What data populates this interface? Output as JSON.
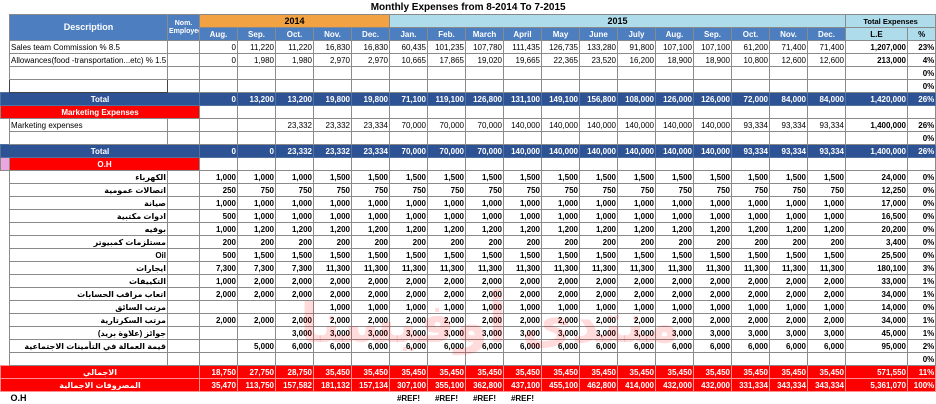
{
  "title": "Monthly Expenses from 8-2014 To 7-2015",
  "watermark": "منتدى أوفيسنا",
  "colors": {
    "year2014_band": "#F2A242",
    "year2015_band": "#AEDCEB",
    "header_blue": "#4D7EBF",
    "total_row_blue": "#2E5395",
    "section_red": "#FE0000",
    "oh_pink": "#EAA6DE"
  },
  "header": {
    "description": "Description",
    "employees": "Nom. Employees",
    "year_2014": "2014",
    "year_2015": "2015",
    "total_expenses": "Total Expenses",
    "months": [
      "Aug.",
      "Sep.",
      "Oct.",
      "Nov.",
      "Dec.",
      "Jan.",
      "Feb.",
      "March",
      "April",
      "May",
      "June",
      "July",
      "Aug.",
      "Sep.",
      "Oct.",
      "Nov.",
      "Dec."
    ],
    "le": "L.E",
    "pct": "%"
  },
  "rows": [
    {
      "type": "data",
      "name": "sales-commission",
      "label": "Sales team Commission % 8.5",
      "values": [
        "0",
        "11,220",
        "11,220",
        "16,830",
        "16,830",
        "60,435",
        "101,235",
        "107,780",
        "111,435",
        "126,735",
        "133,280",
        "91,800",
        "107,100",
        "107,100",
        "61,200",
        "71,400",
        "71,400"
      ],
      "le": "1,207,000",
      "pct": "23%"
    },
    {
      "type": "data",
      "name": "allowances",
      "label": "Allowances(food -transportation...etc) % 1.5",
      "values": [
        "0",
        "1,980",
        "1,980",
        "2,970",
        "2,970",
        "10,665",
        "17,865",
        "19,020",
        "19,665",
        "22,365",
        "23,520",
        "16,200",
        "18,900",
        "18,900",
        "10,800",
        "12,600",
        "12,600"
      ],
      "le": "213,000",
      "pct": "4%"
    },
    {
      "type": "blank",
      "pct": "0%"
    },
    {
      "type": "blank-selected",
      "pct": "0%"
    },
    {
      "type": "total",
      "label": "Total",
      "values": [
        "0",
        "13,200",
        "13,200",
        "19,800",
        "19,800",
        "71,100",
        "119,100",
        "126,800",
        "131,100",
        "149,100",
        "156,800",
        "108,000",
        "126,000",
        "126,000",
        "72,000",
        "84,000",
        "84,000"
      ],
      "le": "1,420,000",
      "pct": "26%"
    },
    {
      "type": "section",
      "label": "Marketing Expenses"
    },
    {
      "type": "data",
      "name": "marketing-expenses",
      "label": "Marketing expenses",
      "values": [
        "",
        "",
        "23,332",
        "23,332",
        "23,334",
        "70,000",
        "70,000",
        "70,000",
        "140,000",
        "140,000",
        "140,000",
        "140,000",
        "140,000",
        "140,000",
        "93,334",
        "93,334",
        "93,334"
      ],
      "le": "1,400,000",
      "pct": "26%"
    },
    {
      "type": "blank",
      "pct": "0%"
    },
    {
      "type": "total",
      "label": "Total",
      "values": [
        "0",
        "0",
        "23,332",
        "23,332",
        "23,334",
        "70,000",
        "70,000",
        "70,000",
        "140,000",
        "140,000",
        "140,000",
        "140,000",
        "140,000",
        "140,000",
        "93,334",
        "93,334",
        "93,334"
      ],
      "le": "1,400,000",
      "pct": "26%"
    },
    {
      "type": "section-oh",
      "label": "O.H"
    },
    {
      "type": "data",
      "arabic": true,
      "name": "electricity",
      "label": "الكهرباء",
      "values": [
        "1,000",
        "1,000",
        "1,000",
        "1,500",
        "1,500",
        "1,500",
        "1,500",
        "1,500",
        "1,500",
        "1,500",
        "1,500",
        "1,500",
        "1,500",
        "1,500",
        "1,500",
        "1,500",
        "1,500"
      ],
      "le": "24,000",
      "pct": "0%"
    },
    {
      "type": "data",
      "arabic": true,
      "name": "public-telecom",
      "label": "اتصالات عمومية",
      "values": [
        "250",
        "750",
        "750",
        "750",
        "750",
        "750",
        "750",
        "750",
        "750",
        "750",
        "750",
        "750",
        "750",
        "750",
        "750",
        "750",
        "750"
      ],
      "le": "12,250",
      "pct": "0%"
    },
    {
      "type": "data",
      "arabic": true,
      "name": "maintenance",
      "label": "صيانة",
      "values": [
        "1,000",
        "1,000",
        "1,000",
        "1,000",
        "1,000",
        "1,000",
        "1,000",
        "1,000",
        "1,000",
        "1,000",
        "1,000",
        "1,000",
        "1,000",
        "1,000",
        "1,000",
        "1,000",
        "1,000"
      ],
      "le": "17,000",
      "pct": "0%"
    },
    {
      "type": "data",
      "arabic": true,
      "name": "office-supplies",
      "label": "ادوات مكتبية",
      "values": [
        "500",
        "1,000",
        "1,000",
        "1,000",
        "1,000",
        "1,000",
        "1,000",
        "1,000",
        "1,000",
        "1,000",
        "1,000",
        "1,000",
        "1,000",
        "1,000",
        "1,000",
        "1,000",
        "1,000"
      ],
      "le": "16,500",
      "pct": "0%"
    },
    {
      "type": "data",
      "arabic": true,
      "name": "buffet",
      "label": "بوفيه",
      "values": [
        "1,000",
        "1,200",
        "1,200",
        "1,200",
        "1,200",
        "1,200",
        "1,200",
        "1,200",
        "1,200",
        "1,200",
        "1,200",
        "1,200",
        "1,200",
        "1,200",
        "1,200",
        "1,200",
        "1,200"
      ],
      "le": "20,200",
      "pct": "0%"
    },
    {
      "type": "data",
      "arabic": true,
      "name": "computer-supplies",
      "label": "مستلزمات كمبيوتر",
      "values": [
        "200",
        "200",
        "200",
        "200",
        "200",
        "200",
        "200",
        "200",
        "200",
        "200",
        "200",
        "200",
        "200",
        "200",
        "200",
        "200",
        "200"
      ],
      "le": "3,400",
      "pct": "0%"
    },
    {
      "type": "data",
      "arabic": true,
      "name": "oil",
      "label": "Oil",
      "values": [
        "500",
        "1,500",
        "1,500",
        "1,500",
        "1,500",
        "1,500",
        "1,500",
        "1,500",
        "1,500",
        "1,500",
        "1,500",
        "1,500",
        "1,500",
        "1,500",
        "1,500",
        "1,500",
        "1,500"
      ],
      "le": "25,500",
      "pct": "0%"
    },
    {
      "type": "data",
      "arabic": true,
      "name": "rents",
      "label": "ايجارات",
      "values": [
        "7,300",
        "7,300",
        "7,300",
        "11,300",
        "11,300",
        "11,300",
        "11,300",
        "11,300",
        "11,300",
        "11,300",
        "11,300",
        "11,300",
        "11,300",
        "11,300",
        "11,300",
        "11,300",
        "11,300"
      ],
      "le": "180,100",
      "pct": "3%"
    },
    {
      "type": "data",
      "arabic": true,
      "name": "air-conditioning",
      "label": "التكييفات",
      "values": [
        "1,000",
        "2,000",
        "2,000",
        "2,000",
        "2,000",
        "2,000",
        "2,000",
        "2,000",
        "2,000",
        "2,000",
        "2,000",
        "2,000",
        "2,000",
        "2,000",
        "2,000",
        "2,000",
        "2,000"
      ],
      "le": "33,000",
      "pct": "1%"
    },
    {
      "type": "data",
      "arabic": true,
      "name": "auditor-fees",
      "label": "اتعاب مراقب الحسابات",
      "values": [
        "2,000",
        "2,000",
        "2,000",
        "2,000",
        "2,000",
        "2,000",
        "2,000",
        "2,000",
        "2,000",
        "2,000",
        "2,000",
        "2,000",
        "2,000",
        "2,000",
        "2,000",
        "2,000",
        "2,000"
      ],
      "le": "34,000",
      "pct": "1%"
    },
    {
      "type": "data",
      "arabic": true,
      "name": "driver-salary",
      "label": "مرتب السائق",
      "values": [
        "",
        "",
        "",
        "1,000",
        "1,000",
        "1,000",
        "1,000",
        "1,000",
        "1,000",
        "1,000",
        "1,000",
        "1,000",
        "1,000",
        "1,000",
        "1,000",
        "1,000",
        "1,000"
      ],
      "le": "14,000",
      "pct": "0%"
    },
    {
      "type": "data",
      "arabic": true,
      "name": "secretary-salary",
      "label": "مرتب السكرتارية",
      "values": [
        "2,000",
        "2,000",
        "2,000",
        "2,000",
        "2,000",
        "2,000",
        "2,000",
        "2,000",
        "2,000",
        "2,000",
        "2,000",
        "2,000",
        "2,000",
        "2,000",
        "2,000",
        "2,000",
        "2,000"
      ],
      "le": "34,000",
      "pct": "1%"
    },
    {
      "type": "data",
      "arabic": true,
      "name": "prizes",
      "label": "جوائز (علاوة بريد)",
      "values": [
        "",
        "",
        "3,000",
        "3,000",
        "3,000",
        "3,000",
        "3,000",
        "3,000",
        "3,000",
        "3,000",
        "3,000",
        "3,000",
        "3,000",
        "3,000",
        "3,000",
        "3,000",
        "3,000"
      ],
      "le": "45,000",
      "pct": "1%"
    },
    {
      "type": "data",
      "arabic": true,
      "name": "social-insurance",
      "label": "قيمة العمالة في التأمينات الاجتماعية",
      "values": [
        "",
        "5,000",
        "6,000",
        "6,000",
        "6,000",
        "6,000",
        "6,000",
        "6,000",
        "6,000",
        "6,000",
        "6,000",
        "6,000",
        "6,000",
        "6,000",
        "6,000",
        "6,000",
        "6,000"
      ],
      "le": "95,000",
      "pct": "2%"
    },
    {
      "type": "blank",
      "pct": "0%"
    },
    {
      "type": "grand",
      "name": "oh-total",
      "label": "الاجمالي",
      "values": [
        "18,750",
        "27,750",
        "28,750",
        "35,450",
        "35,450",
        "35,450",
        "35,450",
        "35,450",
        "35,450",
        "35,450",
        "35,450",
        "35,450",
        "35,450",
        "35,450",
        "35,450",
        "35,450",
        "35,450"
      ],
      "le": "571,550",
      "pct": "11%"
    },
    {
      "type": "grand",
      "name": "grand-total-expenses",
      "label": "المصروفات الاجمالية",
      "values": [
        "35,470",
        "113,750",
        "157,582",
        "181,132",
        "157,134",
        "307,100",
        "355,100",
        "362,800",
        "437,100",
        "455,100",
        "462,800",
        "414,000",
        "432,000",
        "432,000",
        "331,334",
        "343,334",
        "343,334"
      ],
      "le": "5,361,070",
      "pct": "100%"
    },
    {
      "type": "ref",
      "label": "O.H",
      "ref_text": "#REF!",
      "ref_cols": [
        5,
        6,
        7,
        8
      ]
    }
  ]
}
